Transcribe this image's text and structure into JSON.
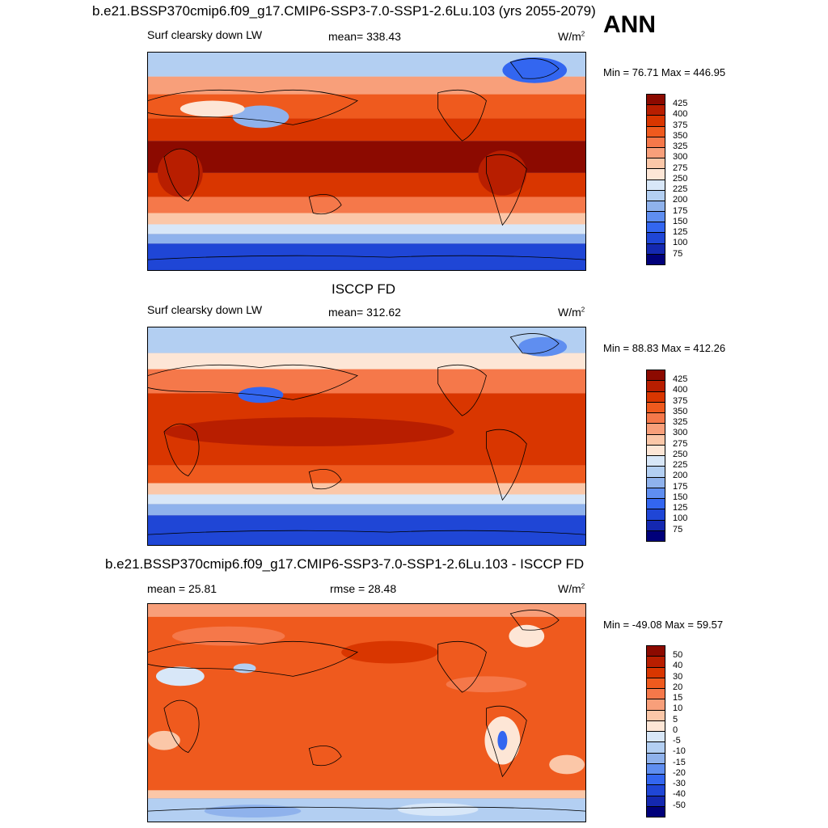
{
  "season": "ANN",
  "panels": [
    {
      "title": "b.e21.BSSP370cmip6.f09_g17.CMIP6-SSP3-7.0-SSP1-2.6Lu.103 (yrs 2055-2079)",
      "left": "Surf clearsky down LW",
      "center": "mean= 338.43",
      "units": "W/m",
      "units_exp": "2",
      "minmax": "Min =  76.71 Max = 446.95",
      "colorbar_labels": [
        "425",
        "400",
        "375",
        "350",
        "325",
        "300",
        "275",
        "250",
        "225",
        "200",
        "175",
        "150",
        "125",
        "100",
        "75"
      ]
    },
    {
      "title": "ISCCP FD",
      "left": "Surf clearsky down LW",
      "center": "mean= 312.62",
      "units": "W/m",
      "units_exp": "2",
      "minmax": "Min =  88.83 Max = 412.26",
      "colorbar_labels": [
        "425",
        "400",
        "375",
        "350",
        "325",
        "300",
        "275",
        "250",
        "225",
        "200",
        "175",
        "150",
        "125",
        "100",
        "75"
      ]
    },
    {
      "title": "b.e21.BSSP370cmip6.f09_g17.CMIP6-SSP3-7.0-SSP1-2.6Lu.103 - ISCCP FD",
      "left": "mean =  25.81",
      "center": "rmse =  28.48",
      "units": "W/m",
      "units_exp": "2",
      "minmax": "Min = -49.08 Max =  59.57",
      "colorbar_labels": [
        "50",
        "40",
        "30",
        "20",
        "15",
        "10",
        "5",
        "0",
        "-5",
        "-10",
        "-15",
        "-20",
        "-30",
        "-40",
        "-50"
      ]
    }
  ],
  "colors": {
    "scale": [
      "#8c0a00",
      "#b81e00",
      "#d93600",
      "#ef5a1e",
      "#f5784a",
      "#f89f7a",
      "#fbc7a8",
      "#fde6d6",
      "#d8e7f8",
      "#b3cff2",
      "#8fb2ec",
      "#5f8ef0",
      "#3366f0",
      "#1f46d6",
      "#1428b0",
      "#00007a"
    ]
  }
}
